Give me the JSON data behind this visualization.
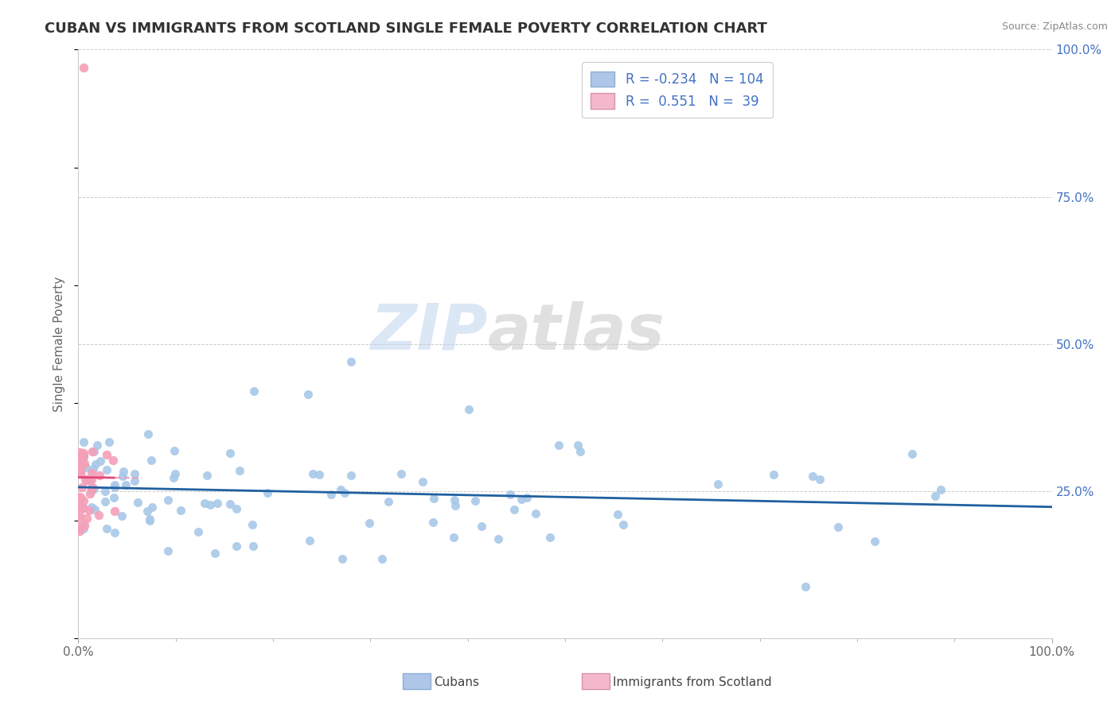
{
  "title": "CUBAN VS IMMIGRANTS FROM SCOTLAND SINGLE FEMALE POVERTY CORRELATION CHART",
  "source": "Source: ZipAtlas.com",
  "ylabel": "Single Female Poverty",
  "blue_dot_color": "#a8c8e8",
  "pink_dot_color": "#f4a0b8",
  "blue_line_color": "#2060a0",
  "pink_line_color": "#e04878",
  "pink_dashed_color": "#e8a0b8",
  "background_color": "#ffffff",
  "grid_color": "#cccccc",
  "right_tick_color": "#4472c4",
  "watermark_zip_color": "#c8d8ec",
  "watermark_atlas_color": "#c8c8c8",
  "legend_box_color": "#aec6e8",
  "legend_pink_color": "#f4b8cc",
  "legend_text_color": "#4472c4",
  "title_color": "#333333",
  "source_color": "#888888",
  "ylabel_color": "#666666",
  "xtick_color": "#666666",
  "n1": 104,
  "n2": 39,
  "r1": -0.234,
  "r2": 0.551
}
